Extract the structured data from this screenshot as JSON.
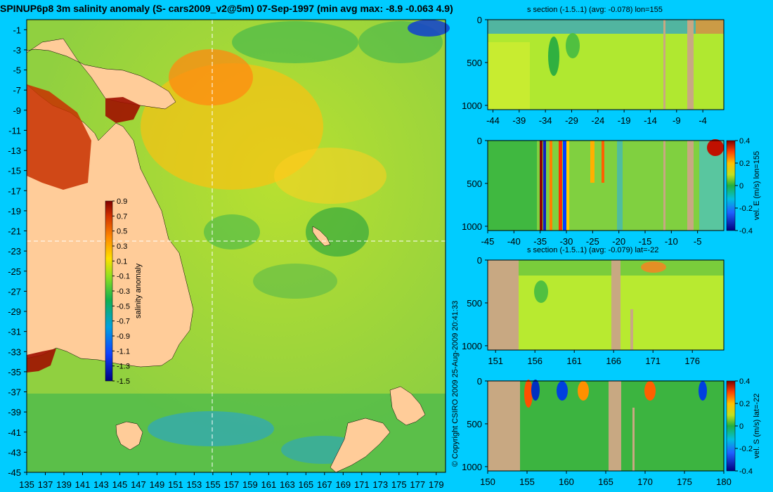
{
  "title": "SPINUP6p8 3m salinity anomaly (S- cars2009_v2@5m) 07-Sep-1997 (min avg max: -8.9 -0.063 4.9)",
  "copyright": "© Copyright CSIRO 2009   25-Aug-2009 20:41:33",
  "colors": {
    "background": "#00ccff",
    "land": "#ffcc99",
    "section_land": "#c8a882"
  },
  "chart_data": [
    {
      "type": "heatmap",
      "id": "map",
      "title": "",
      "xlabel": "",
      "ylabel": "",
      "x_ticks": [
        "135",
        "137",
        "139",
        "141",
        "143",
        "145",
        "147",
        "149",
        "151",
        "153",
        "155",
        "157",
        "159",
        "161",
        "163",
        "165",
        "167",
        "169",
        "171",
        "173",
        "175",
        "177",
        "179"
      ],
      "y_ticks": [
        "-1",
        "-3",
        "-5",
        "-7",
        "-9",
        "-11",
        "-13",
        "-15",
        "-17",
        "-19",
        "-21",
        "-23",
        "-25",
        "-27",
        "-29",
        "-31",
        "-33",
        "-35",
        "-37",
        "-39",
        "-41",
        "-43",
        "-45"
      ],
      "xlim": [
        135,
        180
      ],
      "ylim": [
        -45,
        0
      ],
      "section_lon": 155,
      "section_lat": -22,
      "colorbar": {
        "label": "salinity anomaly",
        "range": [
          -1.5,
          0.9
        ],
        "ticks": [
          "0.9",
          "0.7",
          "0.5",
          "0.3",
          "0.1",
          "-0.1",
          "-0.3",
          "-0.5",
          "-0.7",
          "-0.9",
          "-1.1",
          "-1.3",
          "-1.5"
        ]
      }
    },
    {
      "type": "heatmap",
      "id": "p1",
      "title": "s section (-1.5..1) (avg: -0.078) lon=155",
      "x_ticks": [
        "-44",
        "-39",
        "-34",
        "-29",
        "-24",
        "-19",
        "-14",
        "-9",
        "-4"
      ],
      "y_ticks": [
        "0",
        "500",
        "1000"
      ],
      "xlim": [
        -45,
        0
      ],
      "ylim": [
        1050,
        0
      ]
    },
    {
      "type": "heatmap",
      "id": "p2",
      "title": "",
      "x_ticks": [
        "-45",
        "-40",
        "-35",
        "-30",
        "-25",
        "-20",
        "-15",
        "-10",
        "-5"
      ],
      "y_ticks": [
        "0",
        "500",
        "1000"
      ],
      "xlim": [
        -45,
        0
      ],
      "ylim": [
        1050,
        0
      ],
      "colorbar": {
        "label": "vel. E (m/s) lon=155",
        "range": [
          -0.4,
          0.4
        ],
        "ticks": [
          "0.4",
          "0.2",
          "0",
          "-0.2",
          "-0.4"
        ]
      }
    },
    {
      "type": "heatmap",
      "id": "p3",
      "title": "s section (-1.5..1) (avg: -0.079) lat=-22",
      "x_ticks": [
        "151",
        "156",
        "161",
        "166",
        "171",
        "176"
      ],
      "y_ticks": [
        "0",
        "500",
        "1000"
      ],
      "xlim": [
        150,
        180
      ],
      "ylim": [
        1050,
        0
      ]
    },
    {
      "type": "heatmap",
      "id": "p4",
      "title": "",
      "x_ticks": [
        "150",
        "155",
        "160",
        "165",
        "170",
        "175",
        "180"
      ],
      "y_ticks": [
        "0",
        "500",
        "1000"
      ],
      "xlim": [
        150,
        180
      ],
      "ylim": [
        1050,
        0
      ],
      "colorbar": {
        "label": "vel. S (m/s) lat=-22",
        "range": [
          -0.4,
          0.4
        ],
        "ticks": [
          "0.4",
          "0.2",
          "0",
          "-0.2",
          "-0.4"
        ]
      }
    }
  ]
}
